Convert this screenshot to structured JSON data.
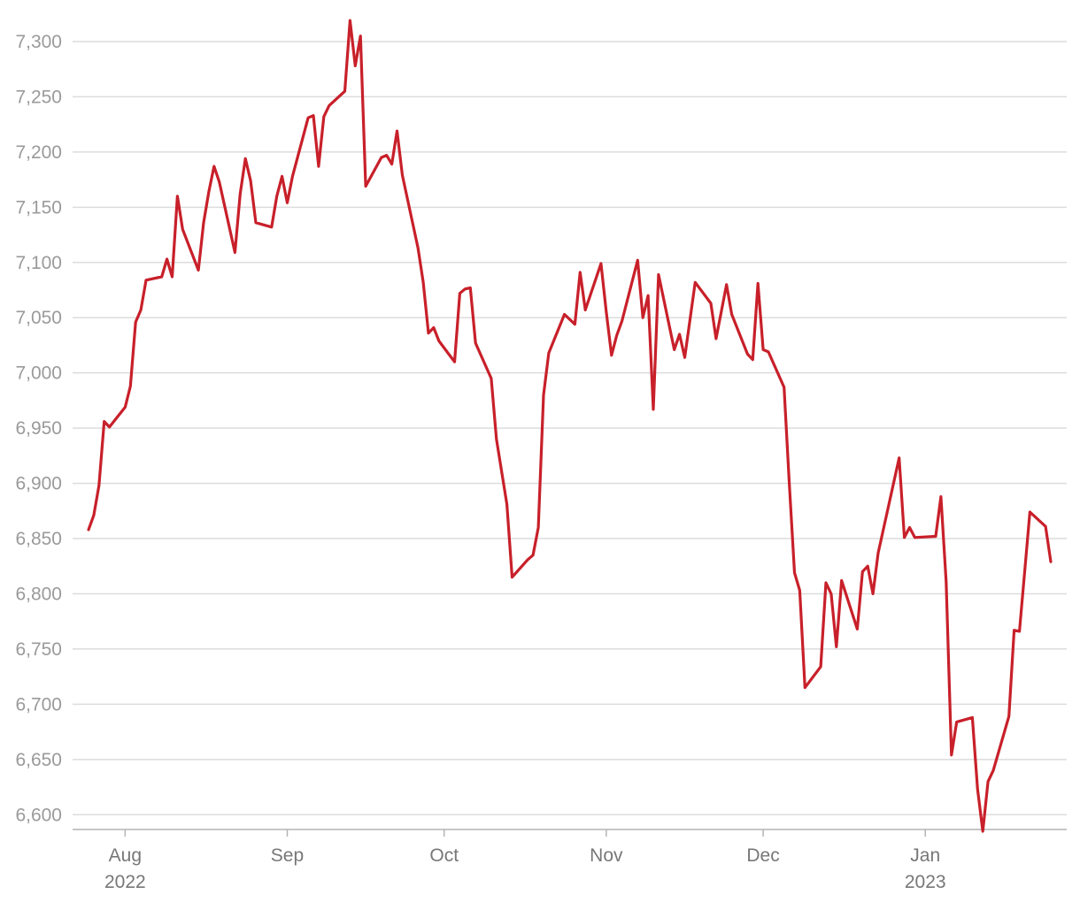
{
  "chart_data": {
    "type": "line",
    "title": "",
    "xlabel": "",
    "ylabel": "",
    "ylim": [
      6585,
      7320
    ],
    "xlim": [
      "2022-07-25",
      "2023-01-25"
    ],
    "grid": "horizontal",
    "legend": "none",
    "y_ticks": [
      6600,
      6650,
      6700,
      6750,
      6800,
      6850,
      6900,
      6950,
      7000,
      7050,
      7100,
      7150,
      7200,
      7250,
      7300
    ],
    "y_tick_labels": [
      "6,600",
      "6,650",
      "6,700",
      "6,750",
      "6,800",
      "6,850",
      "6,900",
      "6,950",
      "7,000",
      "7,050",
      "7,100",
      "7,150",
      "7,200",
      "7,250",
      "7,300"
    ],
    "x_ticks": [
      {
        "date": "2022-08-01",
        "label": "Aug",
        "sublabel": "2022"
      },
      {
        "date": "2022-09-01",
        "label": "Sep",
        "sublabel": ""
      },
      {
        "date": "2022-10-01",
        "label": "Oct",
        "sublabel": ""
      },
      {
        "date": "2022-11-01",
        "label": "Nov",
        "sublabel": ""
      },
      {
        "date": "2022-12-01",
        "label": "Dec",
        "sublabel": ""
      },
      {
        "date": "2023-01-01",
        "label": "Jan",
        "sublabel": "2023"
      }
    ],
    "series": [
      {
        "color": "#c8202a",
        "points": [
          [
            "2022-07-25",
            6858
          ],
          [
            "2022-07-26",
            6871
          ],
          [
            "2022-07-27",
            6898
          ],
          [
            "2022-07-28",
            6956
          ],
          [
            "2022-07-29",
            6951
          ],
          [
            "2022-08-01",
            6969
          ],
          [
            "2022-08-02",
            6988
          ],
          [
            "2022-08-03",
            7046
          ],
          [
            "2022-08-04",
            7057
          ],
          [
            "2022-08-05",
            7084
          ],
          [
            "2022-08-08",
            7087
          ],
          [
            "2022-08-09",
            7103
          ],
          [
            "2022-08-10",
            7087
          ],
          [
            "2022-08-11",
            7160
          ],
          [
            "2022-08-12",
            7130
          ],
          [
            "2022-08-15",
            7093
          ],
          [
            "2022-08-16",
            7136
          ],
          [
            "2022-08-17",
            7164
          ],
          [
            "2022-08-18",
            7187
          ],
          [
            "2022-08-19",
            7173
          ],
          [
            "2022-08-22",
            7109
          ],
          [
            "2022-08-23",
            7162
          ],
          [
            "2022-08-24",
            7194
          ],
          [
            "2022-08-25",
            7174
          ],
          [
            "2022-08-26",
            7136
          ],
          [
            "2022-08-29",
            7132
          ],
          [
            "2022-08-30",
            7160
          ],
          [
            "2022-08-31",
            7178
          ],
          [
            "2022-09-01",
            7154
          ],
          [
            "2022-09-02",
            7178
          ],
          [
            "2022-09-05",
            7231
          ],
          [
            "2022-09-06",
            7233
          ],
          [
            "2022-09-07",
            7187
          ],
          [
            "2022-09-08",
            7232
          ],
          [
            "2022-09-09",
            7242
          ],
          [
            "2022-09-12",
            7255
          ],
          [
            "2022-09-13",
            7319
          ],
          [
            "2022-09-14",
            7278
          ],
          [
            "2022-09-15",
            7305
          ],
          [
            "2022-09-16",
            7169
          ],
          [
            "2022-09-19",
            7195
          ],
          [
            "2022-09-20",
            7197
          ],
          [
            "2022-09-21",
            7189
          ],
          [
            "2022-09-22",
            7219
          ],
          [
            "2022-09-23",
            7179
          ],
          [
            "2022-09-26",
            7113
          ],
          [
            "2022-09-27",
            7082
          ],
          [
            "2022-09-28",
            7036
          ],
          [
            "2022-09-29",
            7041
          ],
          [
            "2022-09-30",
            7029
          ],
          [
            "2022-10-03",
            7010
          ],
          [
            "2022-10-04",
            7072
          ],
          [
            "2022-10-05",
            7076
          ],
          [
            "2022-10-06",
            7077
          ],
          [
            "2022-10-07",
            7027
          ],
          [
            "2022-10-10",
            6995
          ],
          [
            "2022-10-11",
            6940
          ],
          [
            "2022-10-13",
            6881
          ],
          [
            "2022-10-14",
            6815
          ],
          [
            "2022-10-17",
            6831
          ],
          [
            "2022-10-18",
            6835
          ],
          [
            "2022-10-19",
            6860
          ],
          [
            "2022-10-20",
            6980
          ],
          [
            "2022-10-21",
            7018
          ],
          [
            "2022-10-24",
            7053
          ],
          [
            "2022-10-26",
            7044
          ],
          [
            "2022-10-27",
            7091
          ],
          [
            "2022-10-28",
            7057
          ],
          [
            "2022-10-31",
            7099
          ],
          [
            "2022-11-01",
            7055
          ],
          [
            "2022-11-02",
            7016
          ],
          [
            "2022-11-03",
            7034
          ],
          [
            "2022-11-04",
            7047
          ],
          [
            "2022-11-07",
            7102
          ],
          [
            "2022-11-08",
            7050
          ],
          [
            "2022-11-09",
            7070
          ],
          [
            "2022-11-10",
            6967
          ],
          [
            "2022-11-11",
            7089
          ],
          [
            "2022-11-14",
            7021
          ],
          [
            "2022-11-15",
            7035
          ],
          [
            "2022-11-16",
            7014
          ],
          [
            "2022-11-18",
            7082
          ],
          [
            "2022-11-21",
            7063
          ],
          [
            "2022-11-22",
            7031
          ],
          [
            "2022-11-24",
            7080
          ],
          [
            "2022-11-25",
            7053
          ],
          [
            "2022-11-28",
            7017
          ],
          [
            "2022-11-29",
            7012
          ],
          [
            "2022-11-30",
            7081
          ],
          [
            "2022-12-01",
            7021
          ],
          [
            "2022-12-02",
            7019
          ],
          [
            "2022-12-05",
            6987
          ],
          [
            "2022-12-06",
            6900
          ],
          [
            "2022-12-07",
            6819
          ],
          [
            "2022-12-08",
            6803
          ],
          [
            "2022-12-09",
            6715
          ],
          [
            "2022-12-12",
            6734
          ],
          [
            "2022-12-13",
            6810
          ],
          [
            "2022-12-14",
            6800
          ],
          [
            "2022-12-15",
            6752
          ],
          [
            "2022-12-16",
            6812
          ],
          [
            "2022-12-19",
            6768
          ],
          [
            "2022-12-20",
            6820
          ],
          [
            "2022-12-21",
            6825
          ],
          [
            "2022-12-22",
            6800
          ],
          [
            "2022-12-23",
            6837
          ],
          [
            "2022-12-27",
            6923
          ],
          [
            "2022-12-28",
            6851
          ],
          [
            "2022-12-29",
            6860
          ],
          [
            "2022-12-30",
            6851
          ],
          [
            "2023-01-03",
            6852
          ],
          [
            "2023-01-04",
            6888
          ],
          [
            "2023-01-05",
            6811
          ],
          [
            "2023-01-06",
            6654
          ],
          [
            "2023-01-07",
            6684
          ],
          [
            "2023-01-10",
            6688
          ],
          [
            "2023-01-11",
            6623
          ],
          [
            "2023-01-12",
            6585
          ],
          [
            "2023-01-13",
            6630
          ],
          [
            "2023-01-14",
            6640
          ],
          [
            "2023-01-17",
            6689
          ],
          [
            "2023-01-18",
            6767
          ],
          [
            "2023-01-19",
            6766
          ],
          [
            "2023-01-20",
            6820
          ],
          [
            "2023-01-21",
            6874
          ],
          [
            "2023-01-24",
            6861
          ],
          [
            "2023-01-25",
            6829
          ]
        ]
      }
    ]
  }
}
